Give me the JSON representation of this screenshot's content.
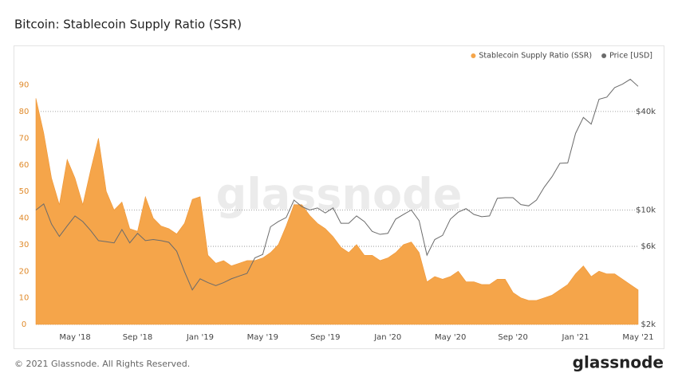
{
  "chart_data": {
    "type": "area",
    "title": "Bitcoin: Stablecoin Supply Ratio (SSR)",
    "categories": [
      null,
      null,
      null,
      null,
      null,
      "May '18",
      null,
      null,
      null,
      null,
      null,
      null,
      null,
      "Sep '18",
      null,
      null,
      null,
      null,
      null,
      null,
      null,
      "Jan '19",
      null,
      null,
      null,
      null,
      null,
      null,
      null,
      "May '19",
      null,
      null,
      null,
      null,
      null,
      null,
      null,
      "Sep '19",
      null,
      null,
      null,
      null,
      null,
      null,
      null,
      "Jan '20",
      null,
      null,
      null,
      null,
      null,
      null,
      null,
      "May '20",
      null,
      null,
      null,
      null,
      null,
      null,
      null,
      "Sep '20",
      null,
      null,
      null,
      null,
      null,
      null,
      null,
      "Jan '21",
      null,
      null,
      null,
      null,
      null,
      null,
      null,
      "May '21"
    ],
    "series": [
      {
        "name": "Stablecoin Supply Ratio (SSR)",
        "color": "#f5a54a",
        "type": "area",
        "values": [
          85,
          72,
          55,
          45,
          62,
          55,
          45,
          58,
          70,
          50,
          43,
          46,
          36,
          35,
          48,
          40,
          37,
          36,
          34,
          38,
          47,
          48,
          26,
          23,
          24,
          22,
          23,
          24,
          24,
          25,
          27,
          30,
          37,
          45,
          45,
          41,
          38,
          36,
          33,
          29,
          27,
          30,
          26,
          26,
          24,
          25,
          27,
          30,
          31,
          27,
          16,
          18,
          17,
          18,
          20,
          16,
          16,
          15,
          15,
          17,
          17,
          12,
          10,
          9,
          9,
          10,
          11,
          13,
          15,
          19,
          22,
          18,
          20,
          19,
          19,
          17,
          15,
          13
        ]
      },
      {
        "name": "Price [USD]",
        "color": "#6b6b6b",
        "type": "line",
        "axis": "y2",
        "values": [
          10000,
          10900,
          8200,
          6900,
          8000,
          9200,
          8500,
          7500,
          6500,
          6400,
          6300,
          7600,
          6300,
          7200,
          6500,
          6600,
          6500,
          6350,
          5600,
          4200,
          3250,
          3800,
          3600,
          3450,
          3600,
          3800,
          3950,
          4100,
          5100,
          5350,
          7900,
          8500,
          9000,
          11500,
          10500,
          10000,
          10300,
          9600,
          10300,
          8300,
          8300,
          9200,
          8500,
          7400,
          7100,
          7200,
          8800,
          9400,
          10000,
          8600,
          5300,
          6600,
          7000,
          8800,
          9700,
          10200,
          9400,
          9100,
          9200,
          11800,
          11900,
          11900,
          10800,
          10600,
          11500,
          13800,
          16000,
          19300,
          19400,
          29400,
          36800,
          33500,
          47500,
          49000,
          56000,
          58800,
          63000,
          57000
        ]
      }
    ],
    "ylim": [
      0,
      95
    ],
    "yticks": [
      0,
      10,
      20,
      30,
      40,
      50,
      60,
      70,
      80,
      90
    ],
    "y2lim": [
      2000,
      70000
    ],
    "y2scale": "log",
    "y2ticks": [
      {
        "value": 2000,
        "label": "$2k"
      },
      {
        "value": 6000,
        "label": "$6k"
      },
      {
        "value": 10000,
        "label": "$10k"
      },
      {
        "value": 40000,
        "label": "$40k"
      }
    ],
    "legend": "top-right"
  },
  "watermark": "glassnode",
  "footer": "© 2021 Glassnode. All Rights Reserved.",
  "logo": "glassnode"
}
